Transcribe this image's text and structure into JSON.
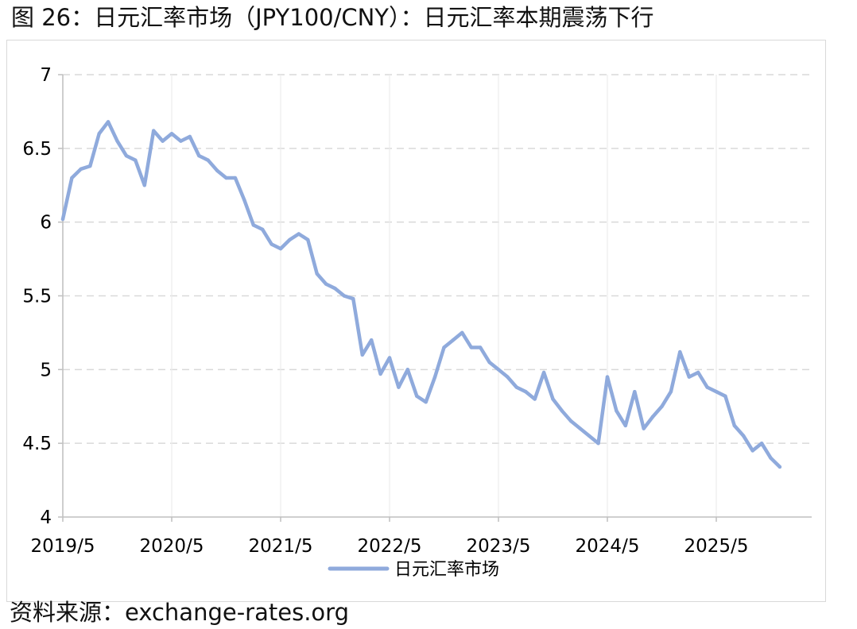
{
  "figure": {
    "title": "图 26：日元汇率市场（JPY100/CNY）：日元汇率本期震荡下行",
    "source": "资料来源：exchange-rates.org"
  },
  "colors": {
    "series": "#8FAADC",
    "grid": "#d9d9d9",
    "axis": "#bfbfbf"
  },
  "chart_data": {
    "type": "line",
    "title": "",
    "xlabel": "",
    "ylabel": "",
    "ylim": [
      4,
      7
    ],
    "yticks": [
      "4",
      "4.5",
      "5",
      "5.5",
      "6",
      "6.5",
      "7"
    ],
    "xticks": [
      "2019/5",
      "2020/5",
      "2021/5",
      "2022/5",
      "2023/5",
      "2024/5",
      "2025/5"
    ],
    "grid": "horizontal dashed",
    "legend_position": "bottom",
    "series": [
      {
        "name": "日元汇率市场",
        "x": [
          "2019-05",
          "2019-06",
          "2019-07",
          "2019-08",
          "2019-09",
          "2019-10",
          "2019-11",
          "2019-12",
          "2020-01",
          "2020-02",
          "2020-03",
          "2020-04",
          "2020-05",
          "2020-06",
          "2020-07",
          "2020-08",
          "2020-09",
          "2020-10",
          "2020-11",
          "2020-12",
          "2021-01",
          "2021-02",
          "2021-03",
          "2021-04",
          "2021-05",
          "2021-06",
          "2021-07",
          "2021-08",
          "2021-09",
          "2021-10",
          "2021-11",
          "2021-12",
          "2022-01",
          "2022-02",
          "2022-03",
          "2022-04",
          "2022-05",
          "2022-06",
          "2022-07",
          "2022-08",
          "2022-09",
          "2022-10",
          "2022-11",
          "2022-12",
          "2023-01",
          "2023-02",
          "2023-03",
          "2023-04",
          "2023-05",
          "2023-06",
          "2023-07",
          "2023-08",
          "2023-09",
          "2023-10",
          "2023-11",
          "2023-12",
          "2024-01",
          "2024-02",
          "2024-03",
          "2024-04",
          "2024-05",
          "2024-06",
          "2024-07",
          "2024-08",
          "2024-09",
          "2024-10",
          "2024-11",
          "2024-12",
          "2025-01",
          "2025-02",
          "2025-03",
          "2025-04",
          "2025-05",
          "2025-06",
          "2025-07",
          "2025-08",
          "2025-09",
          "2025-10",
          "2025-11",
          "2025-12"
        ],
        "values": [
          6.02,
          6.3,
          6.36,
          6.38,
          6.6,
          6.68,
          6.55,
          6.45,
          6.42,
          6.25,
          6.62,
          6.55,
          6.6,
          6.55,
          6.58,
          6.45,
          6.42,
          6.35,
          6.3,
          6.3,
          6.15,
          5.98,
          5.95,
          5.85,
          5.82,
          5.88,
          5.92,
          5.88,
          5.65,
          5.58,
          5.55,
          5.5,
          5.48,
          5.1,
          5.2,
          4.97,
          5.08,
          4.88,
          5.0,
          4.82,
          4.78,
          4.95,
          5.15,
          5.2,
          5.25,
          5.15,
          5.15,
          5.05,
          5.0,
          4.95,
          4.88,
          4.85,
          4.8,
          4.98,
          4.8,
          4.72,
          4.65,
          4.6,
          4.55,
          4.5,
          4.95,
          4.72,
          4.62,
          4.85,
          4.6,
          4.68,
          4.75,
          4.85,
          5.12,
          4.95,
          4.98,
          4.88,
          4.85,
          4.82,
          4.62,
          4.55,
          4.45,
          4.5,
          4.4,
          4.34
        ]
      }
    ]
  }
}
